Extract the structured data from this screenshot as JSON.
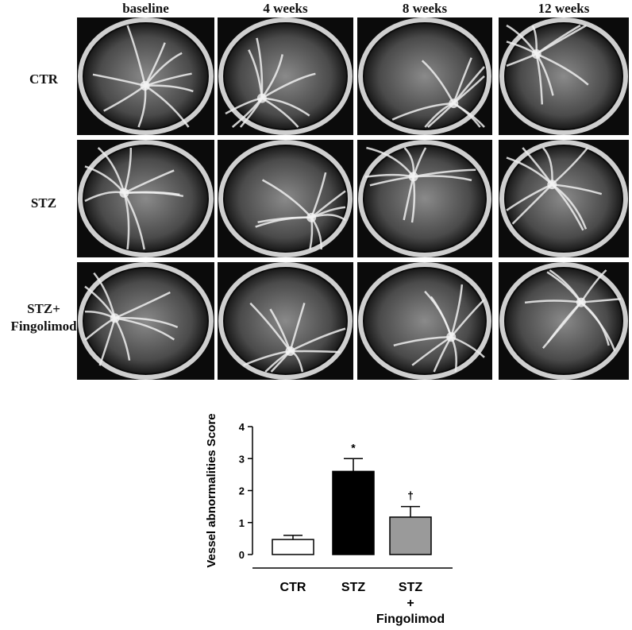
{
  "panel": {
    "columns": [
      "baseline",
      "4 weeks",
      "8 weeks",
      "12 weeks"
    ],
    "rows": [
      "CTR",
      "STZ",
      "STZ+\nFingolimod"
    ]
  },
  "chart_data": {
    "type": "bar",
    "y_label": "Vessel abnormalities Score",
    "categories": [
      "CTR",
      "STZ",
      "STZ\n+\nFingolimod"
    ],
    "values": [
      0.47,
      2.6,
      1.17
    ],
    "errors": [
      0.13,
      0.4,
      0.33
    ],
    "colors": [
      "#ffffff",
      "#000000",
      "#9a9a9a"
    ],
    "value_annotations": [
      null,
      "*",
      "†"
    ],
    "ylim": [
      0,
      4
    ],
    "yticks": [
      0,
      1,
      2,
      3,
      4
    ]
  }
}
